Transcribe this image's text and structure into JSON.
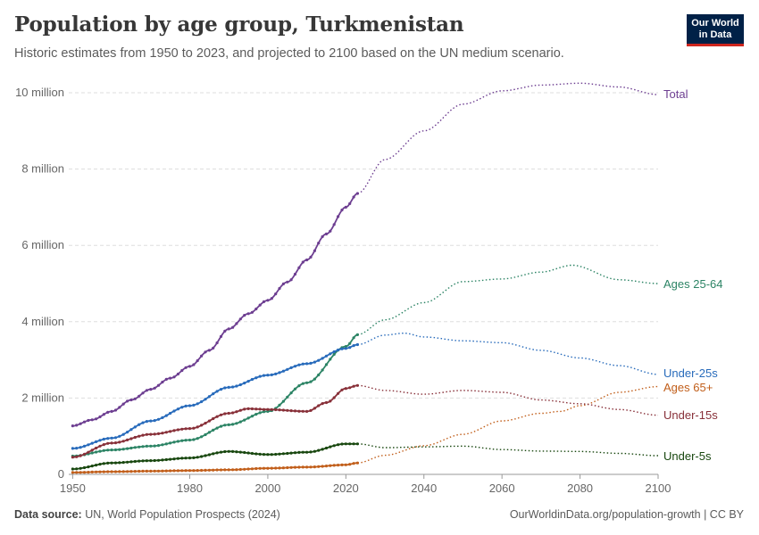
{
  "header": {
    "title": "Population by age group, Turkmenistan",
    "subtitle": "Historic estimates from 1950 to 2023, and projected to 2100 based on the UN medium scenario.",
    "logo_line1": "Our World",
    "logo_line2": "in Data"
  },
  "footer": {
    "source_label": "Data source:",
    "source_text": "UN, World Population Prospects (2024)",
    "url": "OurWorldinData.org/population-growth | CC BY"
  },
  "chart_data": {
    "type": "line",
    "title": "Population by age group, Turkmenistan",
    "xlabel": "",
    "ylabel": "",
    "xlim": [
      1949,
      2100
    ],
    "ylim": [
      0,
      10000000
    ],
    "x_ticks": [
      1950,
      1980,
      2000,
      2020,
      2040,
      2060,
      2080,
      2100
    ],
    "y_ticks": [
      0,
      2000000,
      4000000,
      6000000,
      8000000,
      10000000
    ],
    "y_tick_labels": [
      "0",
      "2 million",
      "4 million",
      "6 million",
      "8 million",
      "10 million"
    ],
    "grid": "horizontal dashed",
    "legend": "labels at line ends (right)",
    "historic_end_year": 2023,
    "series": [
      {
        "name": "Total",
        "color": "#6d3e91",
        "points": [
          [
            1950,
            1270000
          ],
          [
            1955,
            1430000
          ],
          [
            1960,
            1650000
          ],
          [
            1965,
            1950000
          ],
          [
            1970,
            2230000
          ],
          [
            1975,
            2520000
          ],
          [
            1980,
            2830000
          ],
          [
            1985,
            3250000
          ],
          [
            1990,
            3810000
          ],
          [
            1995,
            4210000
          ],
          [
            2000,
            4560000
          ],
          [
            2005,
            5040000
          ],
          [
            2010,
            5620000
          ],
          [
            2015,
            6300000
          ],
          [
            2020,
            7000000
          ],
          [
            2023,
            7360000
          ],
          [
            2030,
            8250000
          ],
          [
            2040,
            9000000
          ],
          [
            2050,
            9700000
          ],
          [
            2060,
            10050000
          ],
          [
            2070,
            10200000
          ],
          [
            2080,
            10250000
          ],
          [
            2090,
            10150000
          ],
          [
            2100,
            9950000
          ]
        ]
      },
      {
        "name": "Ages 25-64",
        "color": "#2c8465",
        "points": [
          [
            1950,
            480000
          ],
          [
            1960,
            640000
          ],
          [
            1970,
            740000
          ],
          [
            1980,
            900000
          ],
          [
            1990,
            1300000
          ],
          [
            2000,
            1650000
          ],
          [
            2010,
            2400000
          ],
          [
            2020,
            3350000
          ],
          [
            2023,
            3660000
          ],
          [
            2030,
            4050000
          ],
          [
            2040,
            4500000
          ],
          [
            2050,
            5050000
          ],
          [
            2060,
            5120000
          ],
          [
            2070,
            5300000
          ],
          [
            2078,
            5480000
          ],
          [
            2090,
            5100000
          ],
          [
            2100,
            5000000
          ]
        ]
      },
      {
        "name": "Under-25s",
        "color": "#286bbb",
        "points": [
          [
            1950,
            680000
          ],
          [
            1960,
            950000
          ],
          [
            1970,
            1400000
          ],
          [
            1980,
            1800000
          ],
          [
            1990,
            2280000
          ],
          [
            2000,
            2600000
          ],
          [
            2010,
            2900000
          ],
          [
            2020,
            3300000
          ],
          [
            2023,
            3400000
          ],
          [
            2030,
            3650000
          ],
          [
            2035,
            3700000
          ],
          [
            2040,
            3600000
          ],
          [
            2050,
            3500000
          ],
          [
            2060,
            3450000
          ],
          [
            2070,
            3250000
          ],
          [
            2080,
            3050000
          ],
          [
            2090,
            2850000
          ],
          [
            2100,
            2620000
          ]
        ]
      },
      {
        "name": "Ages 65+",
        "color": "#c15e1a",
        "points": [
          [
            1950,
            50000
          ],
          [
            1960,
            70000
          ],
          [
            1970,
            85000
          ],
          [
            1980,
            100000
          ],
          [
            1990,
            120000
          ],
          [
            2000,
            160000
          ],
          [
            2010,
            190000
          ],
          [
            2020,
            250000
          ],
          [
            2023,
            300000
          ],
          [
            2030,
            500000
          ],
          [
            2040,
            750000
          ],
          [
            2050,
            1050000
          ],
          [
            2060,
            1400000
          ],
          [
            2070,
            1600000
          ],
          [
            2075,
            1650000
          ],
          [
            2080,
            1800000
          ],
          [
            2090,
            2150000
          ],
          [
            2100,
            2300000
          ]
        ]
      },
      {
        "name": "Under-15s",
        "color": "#883039",
        "points": [
          [
            1950,
            450000
          ],
          [
            1960,
            820000
          ],
          [
            1970,
            1050000
          ],
          [
            1980,
            1200000
          ],
          [
            1990,
            1600000
          ],
          [
            1995,
            1720000
          ],
          [
            2000,
            1700000
          ],
          [
            2010,
            1650000
          ],
          [
            2015,
            1880000
          ],
          [
            2020,
            2250000
          ],
          [
            2023,
            2330000
          ],
          [
            2030,
            2200000
          ],
          [
            2040,
            2100000
          ],
          [
            2050,
            2200000
          ],
          [
            2060,
            2150000
          ],
          [
            2070,
            1950000
          ],
          [
            2080,
            1850000
          ],
          [
            2090,
            1700000
          ],
          [
            2100,
            1550000
          ]
        ]
      },
      {
        "name": "Under-5s",
        "color": "#18470f",
        "points": [
          [
            1950,
            140000
          ],
          [
            1960,
            300000
          ],
          [
            1970,
            360000
          ],
          [
            1980,
            430000
          ],
          [
            1990,
            600000
          ],
          [
            2000,
            520000
          ],
          [
            2010,
            580000
          ],
          [
            2020,
            800000
          ],
          [
            2023,
            800000
          ],
          [
            2030,
            700000
          ],
          [
            2040,
            720000
          ],
          [
            2050,
            740000
          ],
          [
            2060,
            650000
          ],
          [
            2070,
            610000
          ],
          [
            2080,
            600000
          ],
          [
            2090,
            550000
          ],
          [
            2100,
            490000
          ]
        ]
      }
    ]
  }
}
